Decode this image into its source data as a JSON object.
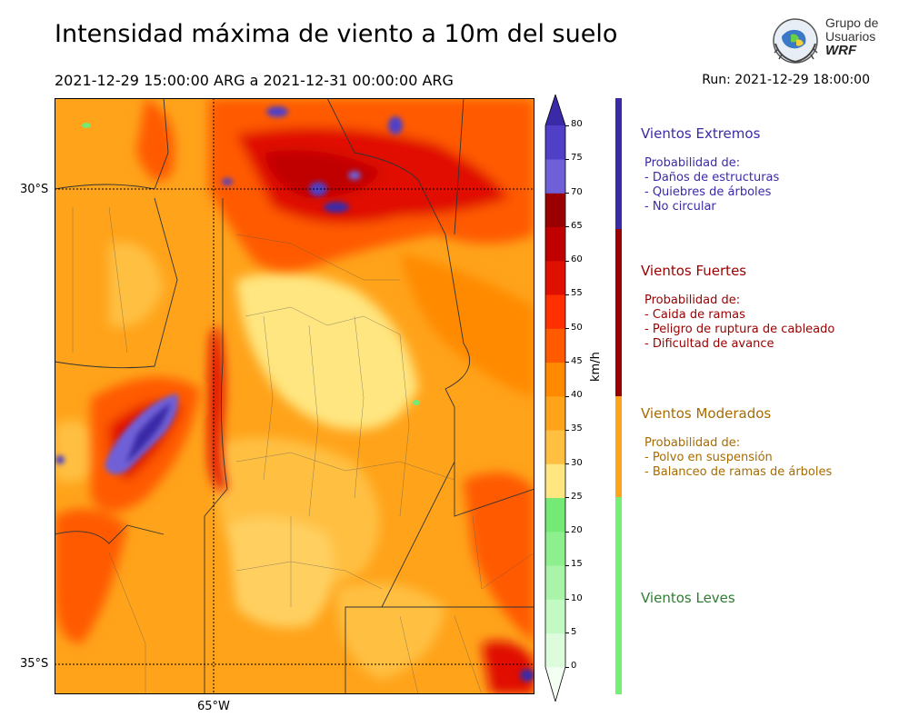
{
  "header": {
    "title": "Intensidad máxima de viento a 10m del suelo",
    "period": "2021-12-29 15:00:00 ARG  a  2021-12-31 00:00:00 ARG",
    "run": "Run: 2021-12-29 18:00:00"
  },
  "logo": {
    "line1": "Grupo de",
    "line2": "Usuarios",
    "line3": "WRF"
  },
  "map": {
    "lat_labels": [
      "30°S",
      "35°S"
    ],
    "lon_labels": [
      "65°W"
    ],
    "lat_range": [
      -35.3,
      -29.05
    ],
    "lon_range": [
      -66.75,
      -61.7
    ]
  },
  "colorbar": {
    "unit": "km/h",
    "ticks": [
      "0",
      "5",
      "10",
      "15",
      "20",
      "25",
      "30",
      "35",
      "40",
      "45",
      "50",
      "55",
      "60",
      "65",
      "70",
      "75",
      "80"
    ],
    "colors": [
      "#f2fff2",
      "#dcfcdc",
      "#c3f9c3",
      "#a9f4a9",
      "#8eef8e",
      "#75e975",
      "#ffe680",
      "#ffc042",
      "#ffa31a",
      "#ff8a00",
      "#ff5a00",
      "#ff3000",
      "#e01000",
      "#c00000",
      "#9a0000",
      "#7060d8",
      "#5040c8",
      "#3b2aa8"
    ]
  },
  "categories": [
    {
      "name": "Vientos Extremos",
      "color": "#3b2aa8",
      "lines": [
        "Probabilidad de:",
        "- Daños de estructuras",
        "- Quiebres de árboles",
        "- No circular"
      ]
    },
    {
      "name": "Vientos Fuertes",
      "color": "#990000",
      "lines": [
        "Probabilidad de:",
        "- Caida de ramas",
        "- Peligro de ruptura de cableado",
        "- Dificultad de avance"
      ]
    },
    {
      "name": "Vientos Moderados",
      "color": "#a86b00",
      "lines": [
        "Probabilidad de:",
        "- Polvo en suspensión",
        "- Balanceo de ramas de árboles"
      ]
    },
    {
      "name": "Vientos Leves",
      "color": "#2e7d32",
      "lines": []
    }
  ],
  "stripe_colors": [
    "#3b2aa8",
    "#9a0000",
    "#ffa31a",
    "#75f075"
  ]
}
